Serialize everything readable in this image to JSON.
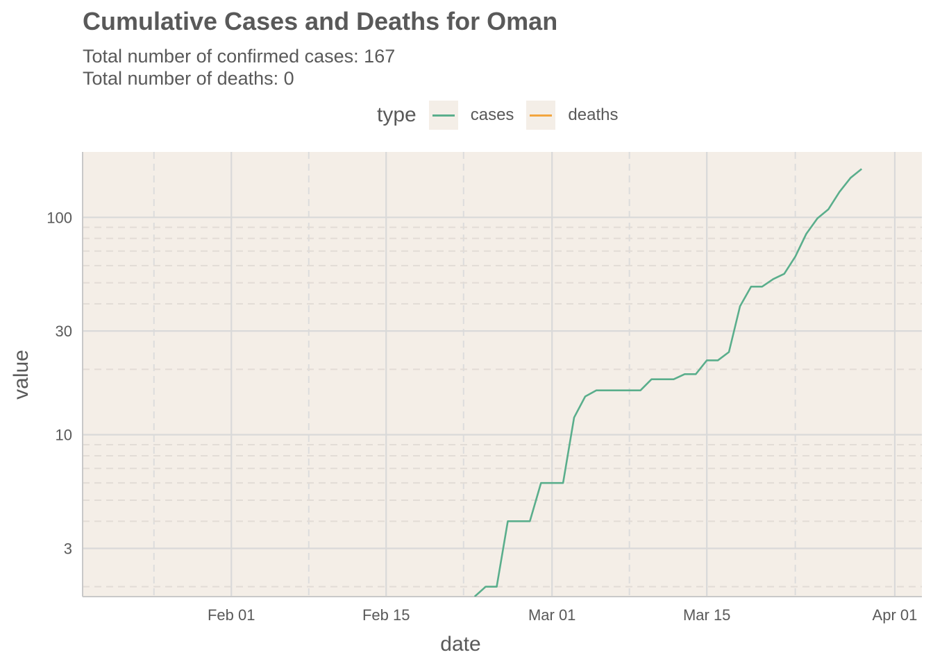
{
  "title": "Cumulative Cases and Deaths for Oman",
  "subtitle_lines": [
    "Total number of confirmed cases: 167",
    "Total number of deaths: 0"
  ],
  "legend": {
    "title": "type",
    "items": [
      {
        "label": "cases",
        "color": "#5aae8c"
      },
      {
        "label": "deaths",
        "color": "#f2a53f"
      }
    ]
  },
  "chart_data": {
    "type": "line",
    "title": "Cumulative Cases and Deaths for Oman",
    "xlabel": "date",
    "ylabel": "value",
    "y_scale": "log10",
    "ylim": [
      1.8,
      200
    ],
    "xlim": [
      "2020-01-22",
      "2020-03-31"
    ],
    "x_ticks": [
      "2020-02-01",
      "2020-02-15",
      "2020-03-01",
      "2020-03-15",
      "2020-04-01"
    ],
    "x_tick_labels": [
      "Feb 01",
      "Feb 15",
      "Mar 01",
      "Mar 15",
      "Apr 01"
    ],
    "y_ticks": [
      3,
      10,
      30,
      100
    ],
    "y_tick_labels": [
      "3",
      "10",
      "30",
      "100"
    ],
    "grid": true,
    "legend_position": "top",
    "series": [
      {
        "name": "cases",
        "color": "#5aae8c",
        "x": [
          "2020-02-24",
          "2020-02-25",
          "2020-02-26",
          "2020-02-27",
          "2020-02-28",
          "2020-02-29",
          "2020-03-01",
          "2020-03-02",
          "2020-03-03",
          "2020-03-04",
          "2020-03-05",
          "2020-03-06",
          "2020-03-07",
          "2020-03-08",
          "2020-03-09",
          "2020-03-10",
          "2020-03-11",
          "2020-03-12",
          "2020-03-13",
          "2020-03-14",
          "2020-03-15",
          "2020-03-16",
          "2020-03-17",
          "2020-03-18",
          "2020-03-19",
          "2020-03-20",
          "2020-03-21",
          "2020-03-22",
          "2020-03-23",
          "2020-03-24",
          "2020-03-25",
          "2020-03-26",
          "2020-03-27",
          "2020-03-28",
          "2020-03-29"
        ],
        "values": [
          2,
          2,
          4,
          4,
          4,
          6,
          6,
          6,
          12,
          15,
          16,
          16,
          16,
          16,
          16,
          18,
          18,
          18,
          19,
          19,
          22,
          22,
          24,
          39,
          48,
          48,
          52,
          55,
          66,
          84,
          99,
          109,
          131,
          152,
          167
        ]
      },
      {
        "name": "deaths",
        "color": "#f2a53f",
        "x": [],
        "values": []
      }
    ]
  }
}
